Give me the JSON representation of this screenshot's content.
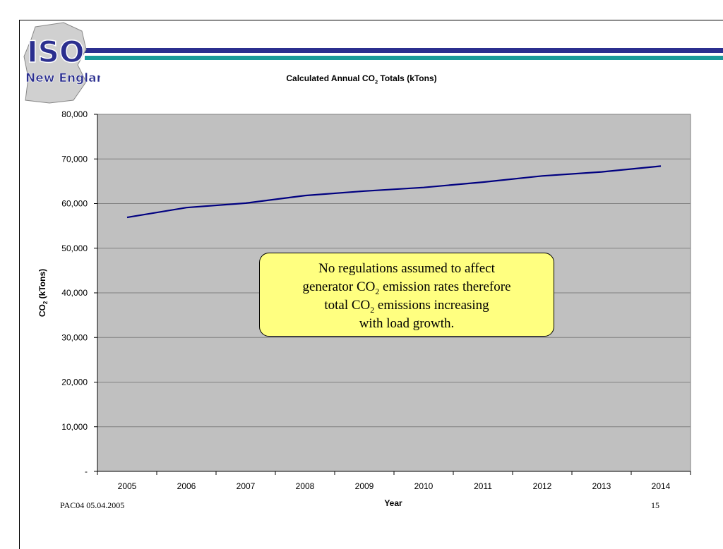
{
  "logo": {
    "line1": "ISO",
    "line2": "New England"
  },
  "title": {
    "pre": "Calculated Annual CO",
    "sub": "2",
    "post": " Totals (kTons)"
  },
  "callout": {
    "line1": "No regulations assumed to affect",
    "line2_pre": "generator CO",
    "line2_sub": "2",
    "line2_post": " emission rates therefore",
    "line3_pre": "total CO",
    "line3_sub": "2",
    "line3_post": " emissions increasing",
    "line4": "with load growth."
  },
  "footer": {
    "left": "PAC04 05.04.2005",
    "page": "15"
  },
  "colors": {
    "plot_bg": "#c0c0c0",
    "line": "#000080",
    "stripe_blue": "#2b2f8f",
    "stripe_teal": "#1a9a9a",
    "callout_bg": "#ffff80"
  },
  "chart_data": {
    "type": "line",
    "title": "Calculated Annual CO2 Totals (kTons)",
    "xlabel": "Year",
    "ylabel": "CO2 (kTons)",
    "ylabel_pre": "CO",
    "ylabel_sub": "2",
    "ylabel_post": " (kTons)",
    "categories": [
      "2005",
      "2006",
      "2007",
      "2008",
      "2009",
      "2010",
      "2011",
      "2012",
      "2013",
      "2014"
    ],
    "series": [
      {
        "values": [
          56900,
          59100,
          60100,
          61800,
          62800,
          63600,
          64800,
          66200,
          67100,
          68400
        ]
      }
    ],
    "ylim": [
      0,
      80000
    ],
    "yticks": [
      0,
      10000,
      20000,
      30000,
      40000,
      50000,
      60000,
      70000,
      80000
    ],
    "ytick_labels": [
      "-",
      "10,000",
      "20,000",
      "30,000",
      "40,000",
      "50,000",
      "60,000",
      "70,000",
      "80,000"
    ],
    "grid": true
  }
}
